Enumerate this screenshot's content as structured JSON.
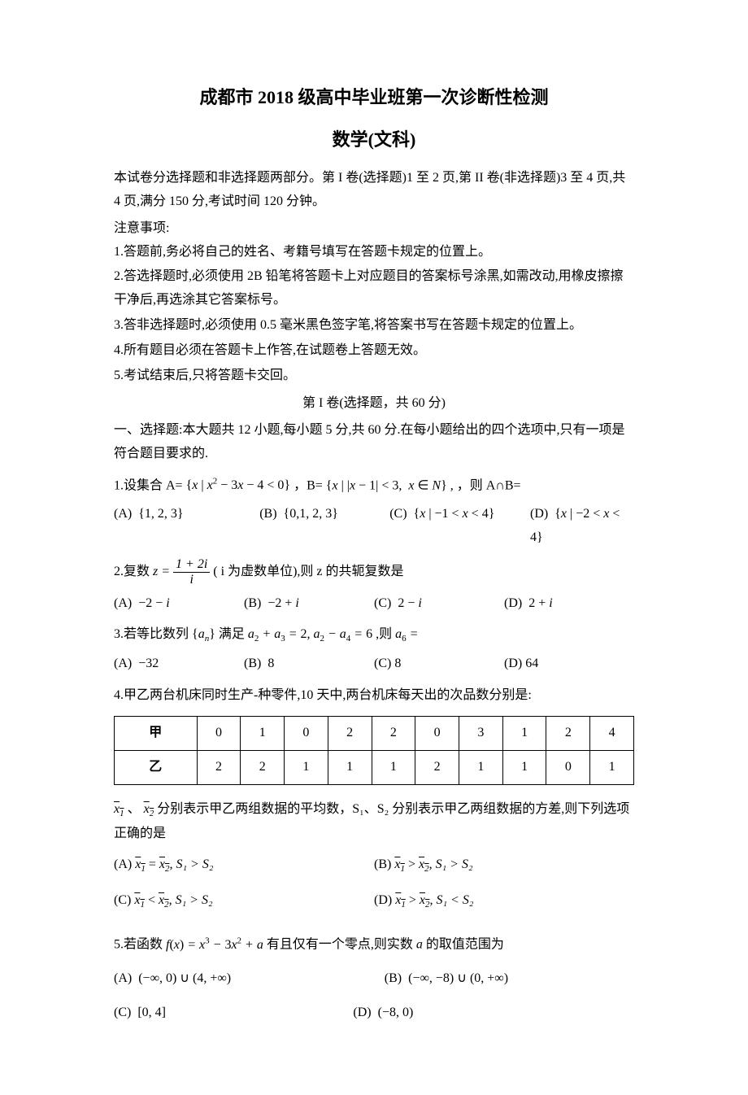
{
  "header": {
    "title": "成都市 2018 级高中毕业班第一次诊断性检测",
    "subtitle": "数学(文科)"
  },
  "intro": {
    "p1": "本试卷分选择题和非选择题两部分。第 I 卷(选择题)1 至 2 页,第 II 卷(非选择题)3 至 4 页,共 4 页,满分 150 分,考试时间 120 分钟。",
    "notes_title": "注意事项:",
    "notes": [
      "1.答题前,务必将自己的姓名、考籍号填写在答题卡规定的位置上。",
      "2.答选择题时,必须使用 2B 铅笔将答题卡上对应题目的答案标号涂黑,如需改动,用橡皮擦擦干净后,再选涂其它答案标号。",
      "3.答非选择题时,必须使用 0.5 毫米黑色签字笔,将答案书写在答题卡规定的位置上。",
      "4.所有题目必须在答题卡上作答,在试题卷上答题无效。",
      "5.考试结束后,只将答题卡交回。"
    ]
  },
  "section1": {
    "label": "第 I 卷(选择题，共 60 分)",
    "desc": "一、选择题:本大题共 12 小题,每小题 5 分,共 60 分.在每小题给出的四个选项中,只有一项是符合题目要求的."
  },
  "q1": {
    "stem_pre": "1.设集合 A=",
    "setA": "{x | x² − 3x − 4 < 0}",
    "stem_mid": "，B=",
    "setB": "{x | |x − 1| < 3, x ∈ N}",
    "stem_post": ", ，则 A∩B=",
    "opts": {
      "A": "(A)  {1, 2, 3}",
      "B": "(B)  {0,1, 2, 3}",
      "C": "(C)  {x | −1 < x < 4}",
      "D": "(D)  {x | −2 < x < 4}"
    }
  },
  "q2": {
    "stem_pre": "2.复数 ",
    "frac_num": "1 + 2i",
    "frac_den": "i",
    "stem_post": " ( i 为虚数单位),则 z 的共轭复数是",
    "opts": {
      "A": "(A)  −2 − i",
      "B": "(B)  −2 + i",
      "C": "(C)  2 − i",
      "D": "(D)  2 + i"
    }
  },
  "q3": {
    "stem": "3.若等比数列 {aₙ} 满足 a₂ + a₃ = 2, a₂ − a₄ = 6 ,则 a₆ =",
    "opts": {
      "A": "(A)  −32",
      "B": "(B)  8",
      "C": "(C) 8",
      "D": "(D) 64"
    }
  },
  "q4": {
    "stem": "4.甲乙两台机床同时生产-种零件,10 天中,两台机床每天出的次品数分别是:",
    "table": {
      "headers": [
        "甲",
        "乙"
      ],
      "row1": [
        "甲",
        "0",
        "1",
        "0",
        "2",
        "2",
        "0",
        "3",
        "1",
        "2",
        "4"
      ],
      "row2": [
        "乙",
        "2",
        "2",
        "1",
        "1",
        "1",
        "2",
        "1",
        "1",
        "0",
        "1"
      ],
      "border_color": "#000000",
      "cell_padding": 6,
      "font_size": 16
    },
    "para_pre": "、",
    "para_mid": " 分别表示甲乙两组数据的平均数，S₁、S₂ 分别表示甲乙两组数据的方差,则下列选项正确的是",
    "x1_bar": "x₁",
    "x2_bar": "x₂",
    "opts": {
      "A_pre": "(A) ",
      "A_rel": " = ",
      "A_s": ", S₁ > S₂",
      "B_pre": "(B)  ",
      "B_rel": " > ",
      "B_s": ", S₁ > S₂",
      "C_pre": "(C)  ",
      "C_rel": " < ",
      "C_s": ", S₁ > S₂",
      "D_pre": "(D)  ",
      "D_rel": " > ",
      "D_s": ", S₁ < S₂"
    }
  },
  "q5": {
    "stem": "5.若函数 f(x) = x³ − 3x² + a 有且仅有一个零点,则实数 a 的取值范围为",
    "opts": {
      "A": "(A)  (−∞, 0) ∪ (4, +∞)",
      "B": "(B)  (−∞, −8) ∪ (0, +∞)",
      "C": "(C)  [0, 4]",
      "D": "(D)  (−8, 0)"
    }
  }
}
